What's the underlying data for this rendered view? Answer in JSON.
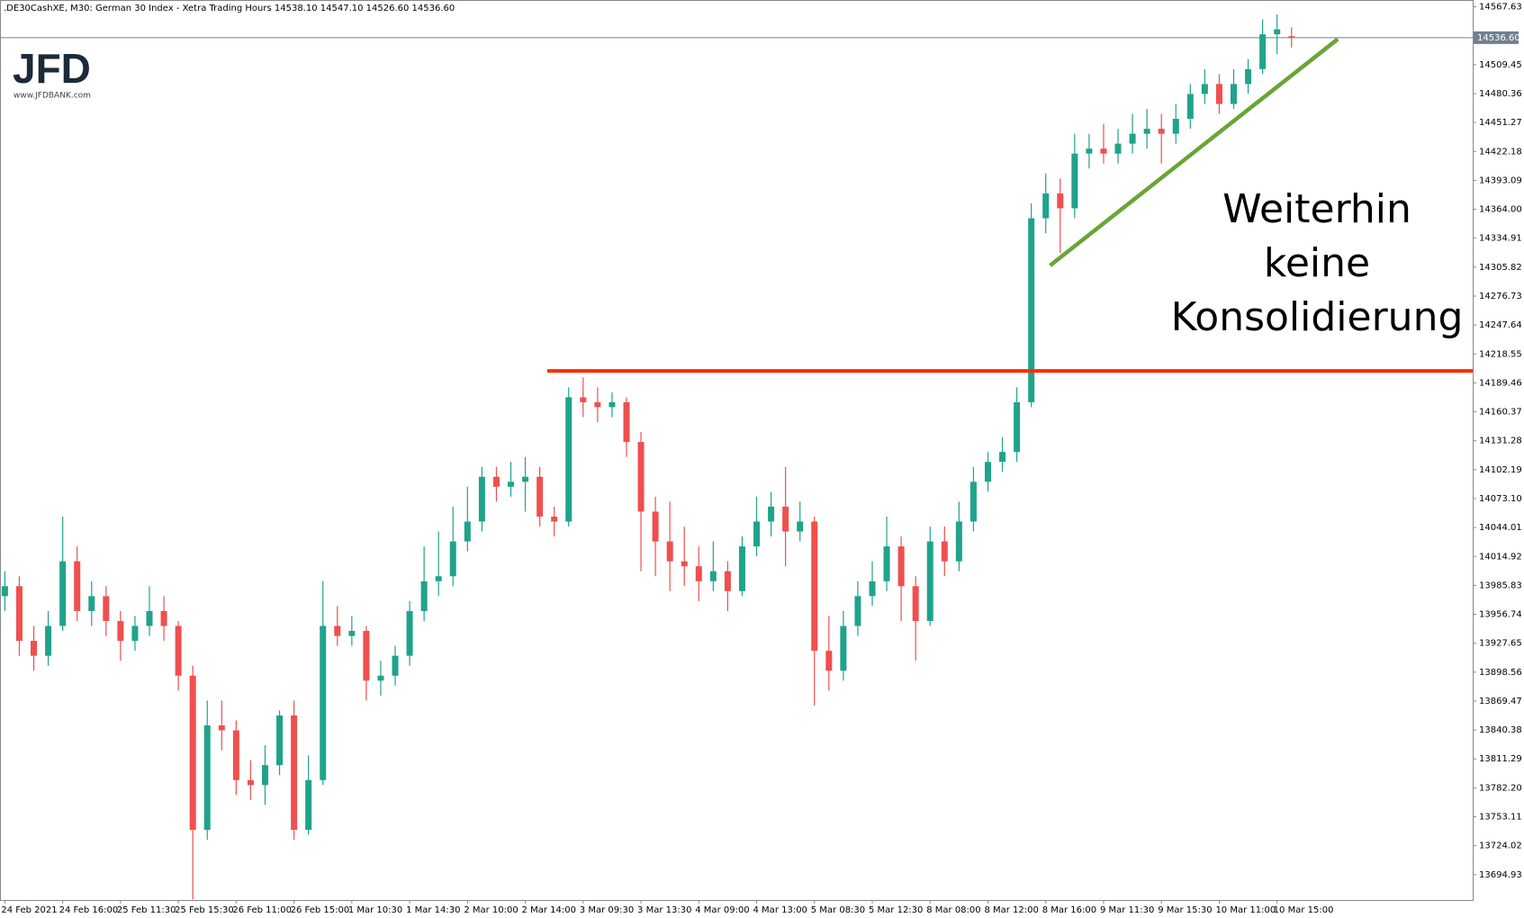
{
  "header": {
    "symbol": ".DE30CashXE, M30:  German 30 Index  - Xetra Trading Hours  14538.10 14547.10 14526.60 14536.60"
  },
  "logo": {
    "mark": "JFD",
    "url": "www.JFDBANK.com"
  },
  "chart_data": {
    "type": "candlestick",
    "categories": [
      "24 Feb 2021",
      "24 Feb 16:00",
      "25 Feb 11:30",
      "25 Feb 15:30",
      "26 Feb 11:00",
      "26 Feb 15:00",
      "1 Mar 10:30",
      "1 Mar 14:30",
      "2 Mar 10:00",
      "2 Mar 14:00",
      "3 Mar 09:30",
      "3 Mar 13:30",
      "4 Mar 09:00",
      "4 Mar 13:00",
      "5 Mar 08:30",
      "5 Mar 12:30",
      "8 Mar 08:00",
      "8 Mar 12:00",
      "8 Mar 16:00",
      "9 Mar 11:30",
      "9 Mar 15:30",
      "10 Mar 11:00",
      "10 Mar 15:00"
    ],
    "open": [
      13975,
      13985,
      13930,
      13915,
      13945,
      14010,
      13960,
      13975,
      13950,
      13930,
      13945,
      13960,
      13945,
      13895,
      13740,
      13845,
      13840,
      13790,
      13785,
      13805,
      13855,
      13740,
      13790,
      13945,
      13935,
      13940,
      13890,
      13895,
      13915,
      13960,
      13990,
      13995,
      14030,
      14050,
      14095,
      14085,
      14090,
      14095,
      14055,
      14050,
      14175,
      14170,
      14165,
      14170,
      14130,
      14060,
      14030,
      14010,
      14005,
      13990,
      14000,
      13980,
      14025,
      14050,
      14065,
      14040,
      14050,
      13920,
      13900,
      13945,
      13975,
      13990,
      14025,
      13985,
      13950,
      14030,
      14010,
      14050,
      14090,
      14110,
      14120,
      14170,
      14355,
      14380,
      14365,
      14420,
      14425,
      14420,
      14430,
      14440,
      14445,
      14440,
      14455,
      14480,
      14490,
      14470,
      14490,
      14505,
      14540,
      14538.1
    ],
    "high": [
      14000,
      13995,
      13945,
      13960,
      14055,
      14025,
      13990,
      13985,
      13960,
      13955,
      13985,
      13975,
      13950,
      13905,
      13870,
      13870,
      13850,
      13810,
      13825,
      13860,
      13870,
      13815,
      13990,
      13965,
      13955,
      13945,
      13910,
      13925,
      13970,
      14025,
      14040,
      14065,
      14085,
      14105,
      14105,
      14110,
      14115,
      14105,
      14065,
      14185,
      14195,
      14185,
      14180,
      14175,
      14140,
      14075,
      14070,
      14045,
      14025,
      14030,
      14010,
      14035,
      14075,
      14080,
      14105,
      14070,
      14055,
      13955,
      13960,
      13990,
      14010,
      14055,
      14035,
      13995,
      14045,
      14045,
      14070,
      14105,
      14120,
      14135,
      14185,
      14370,
      14400,
      14395,
      14440,
      14440,
      14450,
      14445,
      14460,
      14465,
      14460,
      14470,
      14490,
      14505,
      14500,
      14505,
      14515,
      14555,
      14560,
      14547.1
    ],
    "low": [
      13960,
      13915,
      13900,
      13905,
      13940,
      13950,
      13945,
      13935,
      13910,
      13920,
      13935,
      13930,
      13880,
      13670,
      13730,
      13820,
      13775,
      13770,
      13765,
      13795,
      13730,
      13735,
      13785,
      13925,
      13925,
      13870,
      13875,
      13885,
      13905,
      13950,
      13975,
      13985,
      14020,
      14040,
      14070,
      14075,
      14060,
      14045,
      14035,
      14045,
      14155,
      14150,
      14155,
      14115,
      14000,
      13995,
      13980,
      13985,
      13970,
      13980,
      13960,
      13975,
      14015,
      14035,
      14005,
      14030,
      13865,
      13880,
      13890,
      13935,
      13965,
      13980,
      13950,
      13910,
      13945,
      13995,
      14000,
      14040,
      14080,
      14100,
      14110,
      14165,
      14340,
      14320,
      14355,
      14405,
      14410,
      14410,
      14420,
      14425,
      14410,
      14430,
      14445,
      14470,
      14460,
      14465,
      14480,
      14500,
      14520,
      14526.6
    ],
    "close": [
      13985,
      13930,
      13915,
      13945,
      14010,
      13960,
      13975,
      13950,
      13930,
      13945,
      13960,
      13945,
      13895,
      13740,
      13845,
      13840,
      13790,
      13785,
      13805,
      13855,
      13740,
      13790,
      13945,
      13935,
      13940,
      13890,
      13895,
      13915,
      13960,
      13990,
      13995,
      14030,
      14050,
      14095,
      14085,
      14090,
      14095,
      14055,
      14050,
      14175,
      14170,
      14165,
      14170,
      14130,
      14060,
      14030,
      14010,
      14005,
      13990,
      14000,
      13980,
      14025,
      14050,
      14065,
      14040,
      14050,
      13920,
      13900,
      13945,
      13975,
      13990,
      14025,
      13985,
      13950,
      14030,
      14010,
      14050,
      14090,
      14110,
      14120,
      14170,
      14355,
      14380,
      14365,
      14420,
      14425,
      14420,
      14430,
      14440,
      14445,
      14440,
      14455,
      14480,
      14490,
      14470,
      14490,
      14505,
      14540,
      14545,
      14536.6
    ],
    "up_color": "#1fa38b",
    "down_color": "#ef4f4f",
    "ylim": [
      13669.4,
      14574.5
    ],
    "yticks": [
      14567.63,
      14509.45,
      14480.36,
      14451.27,
      14422.18,
      14393.09,
      {
        "value": 14364,
        "label": "14364.00"
      },
      14334.91,
      14305.82,
      14276.73,
      14247.64,
      14218.55,
      14189.46,
      14160.37,
      14131.28,
      14102.19,
      {
        "value": 14073.1,
        "label": "14073.10"
      },
      14044.01,
      14014.92,
      13985.83,
      13956.74,
      13927.65,
      13898.56,
      13869.47,
      13840.38,
      13811.29,
      {
        "value": 13782.2,
        "label": "13782.20"
      },
      13753.11,
      13724.02,
      13694.93
    ],
    "current_price": {
      "value": 14536.6,
      "label": "14536.60"
    },
    "hline": {
      "value": 14201.5,
      "color": "#ff2a00"
    },
    "trendline": {
      "x": [
        72.3,
        92.2
      ],
      "y": [
        14307.5,
        14535.2
      ],
      "color": "#6aa535"
    },
    "annotation": [
      "Weiterhin",
      "keine",
      "Konsolidierung"
    ]
  }
}
